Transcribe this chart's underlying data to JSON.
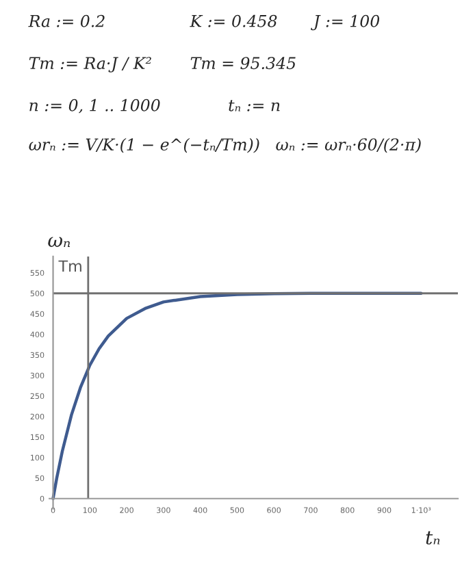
{
  "chart_data": {
    "type": "line",
    "annotations": [
      "Ra := 0.2",
      "K := 0.458",
      "J := 100",
      "Tm := Ra·J / K²",
      "Tm = 95.345",
      "n := 0, 1 .. 1000",
      "tₙ := n",
      "ωrₙ := V/K·(1 − e^(−tₙ/Tm))",
      "ωₙ := ωrₙ·60/(2·π)"
    ],
    "xlabel": "tₙ",
    "ylabel": "ωₙ",
    "x": [
      0,
      10,
      25,
      50,
      75,
      100,
      125,
      150,
      200,
      250,
      300,
      400,
      500,
      600,
      700,
      800,
      900,
      1000
    ],
    "series": [
      {
        "color": "#3f5b8f",
        "values": [
          0,
          50,
          115,
          204,
          272,
          325,
          365,
          396,
          439,
          463,
          479,
          492,
          497,
          499,
          500,
          500,
          500,
          500
        ]
      }
    ],
    "xlim": [
      -10,
      1100
    ],
    "ylim": [
      -25,
      590
    ],
    "xticks": [
      0,
      100,
      200,
      300,
      400,
      500,
      600,
      700,
      800,
      900,
      {
        "value": 1000,
        "label": "1·10³"
      }
    ],
    "yticks": [
      0,
      50,
      100,
      150,
      200,
      250,
      300,
      350,
      400,
      450,
      500,
      550
    ],
    "ref_lines": [
      {
        "axis": "x",
        "value": 95.345,
        "label": "Tm",
        "color": "#707070"
      },
      {
        "axis": "y",
        "value": 500,
        "color": "#707070"
      }
    ],
    "grid": false,
    "marker": "none",
    "line_style": "solid"
  }
}
